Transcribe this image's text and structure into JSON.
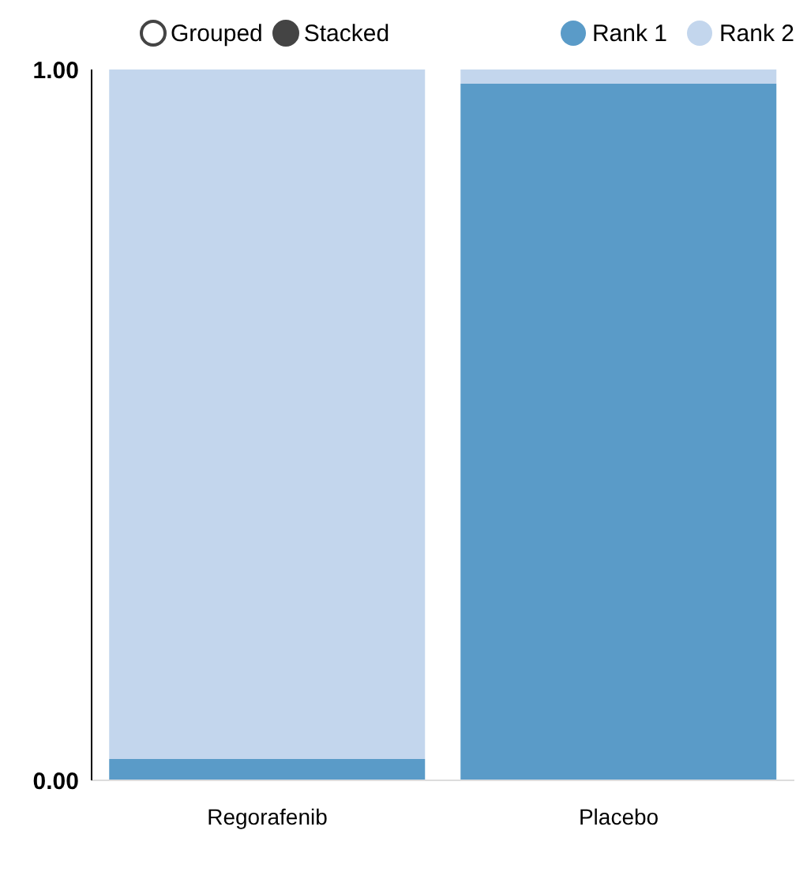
{
  "chart_data": {
    "type": "bar",
    "stacked": true,
    "categories": [
      "Regorafenib",
      "Placebo"
    ],
    "series": [
      {
        "name": "Rank 1",
        "color": "#5a9bc8",
        "values": [
          0.03,
          0.98
        ]
      },
      {
        "name": "Rank 2",
        "color": "#c3d6ed",
        "values": [
          0.97,
          0.02
        ]
      }
    ],
    "ylim": [
      0,
      1
    ],
    "yticks": [
      {
        "value": 0,
        "label": "0.00"
      },
      {
        "value": 1,
        "label": "1.00"
      }
    ],
    "legend": "top right",
    "grid": false,
    "annotations": [
      "Grouped",
      "Stacked"
    ]
  }
}
